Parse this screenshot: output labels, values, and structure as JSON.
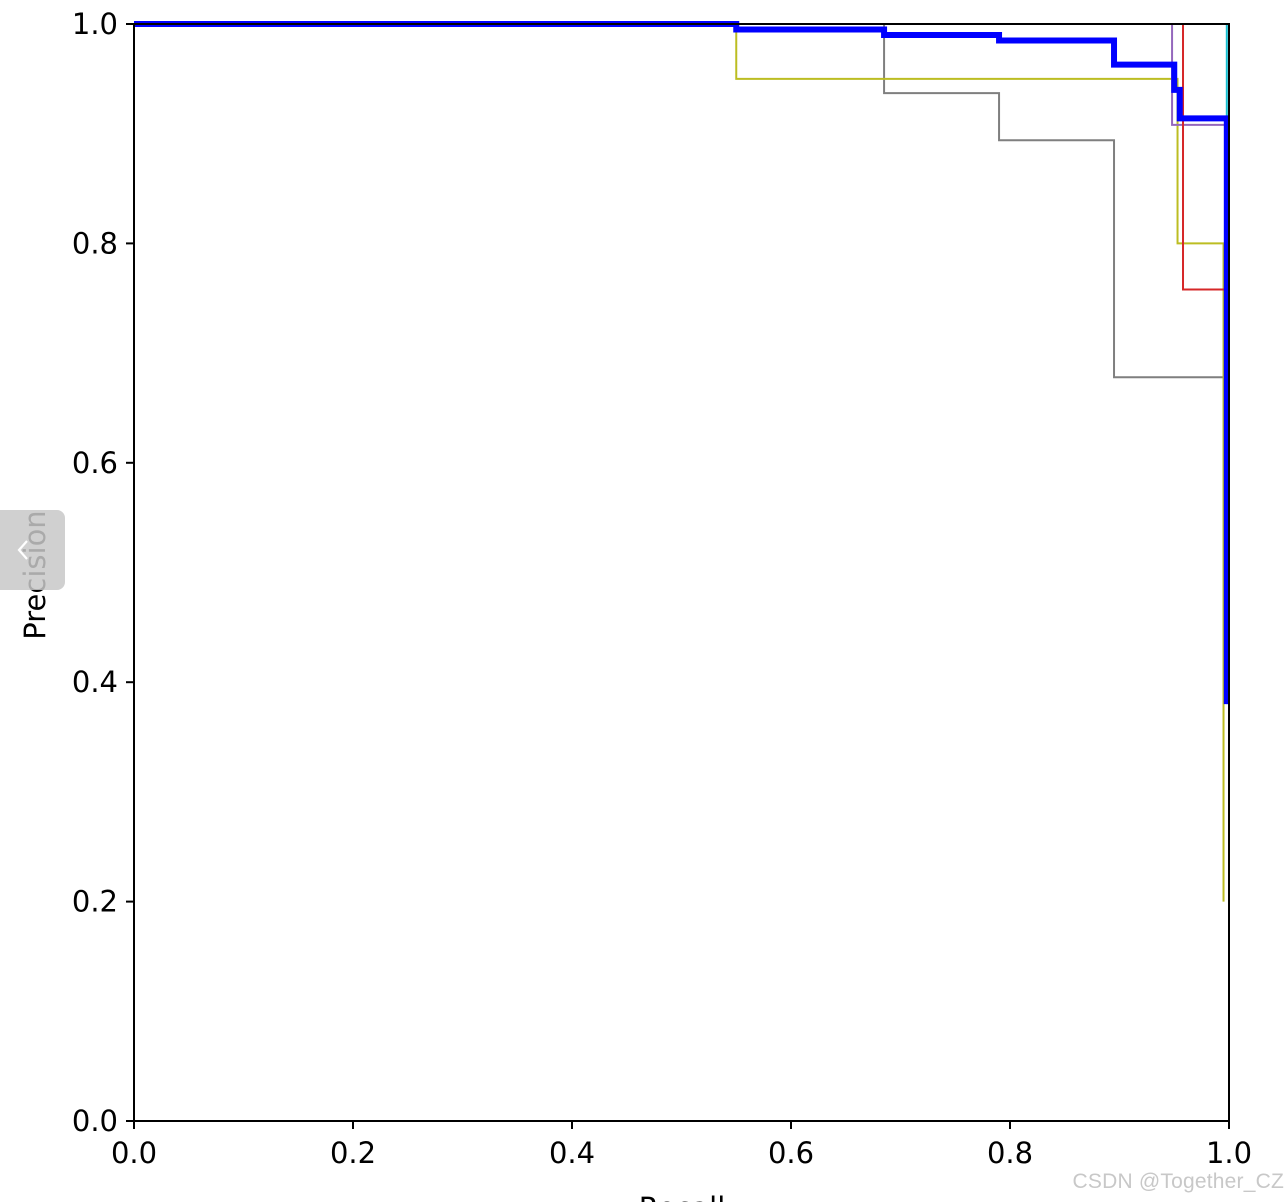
{
  "chart_data": {
    "type": "line",
    "step": true,
    "xlabel": "Recall",
    "ylabel": "Precision",
    "xlim": [
      0,
      1
    ],
    "ylim": [
      0,
      1
    ],
    "xticks": [
      "0.0",
      "0.2",
      "0.4",
      "0.6",
      "0.8",
      "1.0"
    ],
    "yticks": [
      "0.0",
      "0.2",
      "0.4",
      "0.6",
      "0.8",
      "1.0"
    ],
    "grid": false,
    "series": [
      {
        "color": "#7f7f7f",
        "stroke": 2,
        "points": [
          [
            0,
            1.0
          ],
          [
            0.685,
            1.0
          ],
          [
            0.685,
            0.937
          ],
          [
            0.79,
            0.937
          ],
          [
            0.79,
            0.894
          ],
          [
            0.895,
            0.894
          ],
          [
            0.895,
            0.678
          ],
          [
            1.0,
            0.678
          ],
          [
            1.0,
            0.38
          ]
        ]
      },
      {
        "color": "#bcbd22",
        "stroke": 2,
        "points": [
          [
            0,
            1.0
          ],
          [
            0.55,
            1.0
          ],
          [
            0.55,
            0.95
          ],
          [
            0.953,
            0.95
          ],
          [
            0.953,
            0.8
          ],
          [
            0.995,
            0.8
          ],
          [
            0.995,
            0.2
          ]
        ]
      },
      {
        "color": "#9467bd",
        "stroke": 2,
        "points": [
          [
            0,
            1.0
          ],
          [
            0.948,
            1.0
          ],
          [
            0.948,
            0.908
          ],
          [
            1.0,
            0.908
          ],
          [
            1.0,
            0.38
          ]
        ]
      },
      {
        "color": "#d62728",
        "stroke": 2,
        "points": [
          [
            0,
            1.0
          ],
          [
            0.958,
            1.0
          ],
          [
            0.958,
            0.758
          ],
          [
            1.0,
            0.758
          ],
          [
            1.0,
            0.38
          ]
        ]
      },
      {
        "color": "#17becf",
        "stroke": 2,
        "points": [
          [
            0,
            1.0
          ],
          [
            0.998,
            1.0
          ],
          [
            0.998,
            0.38
          ]
        ]
      },
      {
        "color": "#0000ff",
        "stroke": 6,
        "points": [
          [
            0,
            1.0
          ],
          [
            0.55,
            1.0
          ],
          [
            0.55,
            0.995
          ],
          [
            0.685,
            0.995
          ],
          [
            0.685,
            0.99
          ],
          [
            0.79,
            0.99
          ],
          [
            0.79,
            0.985
          ],
          [
            0.895,
            0.985
          ],
          [
            0.895,
            0.963
          ],
          [
            0.95,
            0.963
          ],
          [
            0.95,
            0.94
          ],
          [
            0.955,
            0.94
          ],
          [
            0.955,
            0.914
          ],
          [
            0.998,
            0.914
          ],
          [
            0.998,
            0.38
          ]
        ]
      }
    ]
  },
  "watermark": "CSDN @Together_CZ",
  "side_tab_icon": "chevron-left-icon"
}
